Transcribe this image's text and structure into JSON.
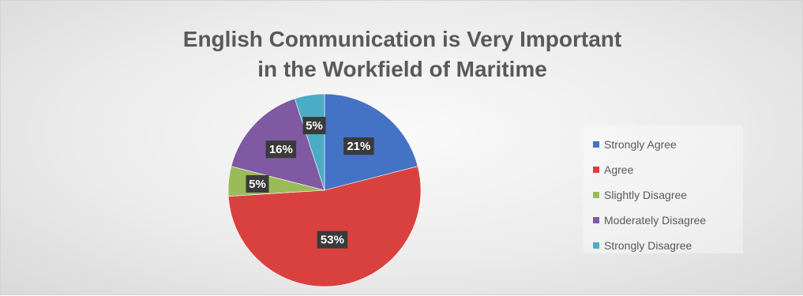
{
  "chart_data": {
    "type": "pie",
    "title_lines": [
      "English Communication is Very Important",
      "in the Workfield of Maritime"
    ],
    "categories": [
      "Strongly Agree",
      "Agree",
      "Slightly Disagree",
      "Moderately Disagree",
      "Strongly Disagree"
    ],
    "values": [
      21,
      53,
      5,
      16,
      5
    ],
    "data_labels": [
      "21%",
      "53%",
      "5%",
      "16%",
      "5%"
    ],
    "colors": [
      "#4472c4",
      "#d9413e",
      "#9bbb59",
      "#7f5aa2",
      "#4bacc6"
    ],
    "legend_position": "right"
  }
}
